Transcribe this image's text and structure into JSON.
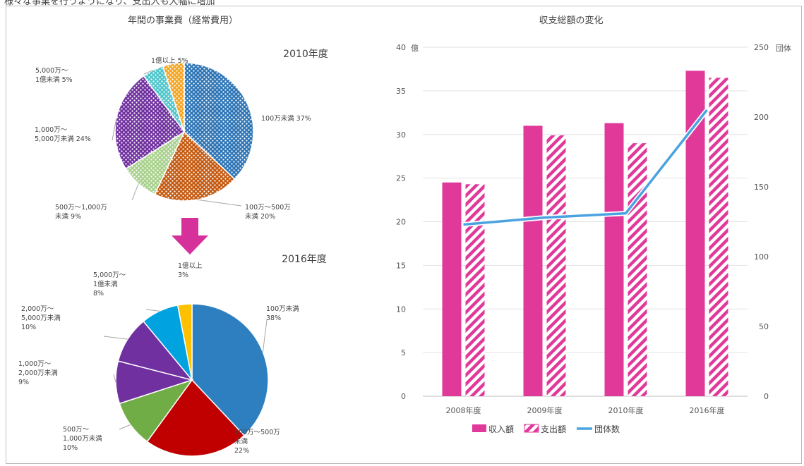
{
  "page_caption": "様々な事業を行うようになり、支出入も大幅に増加",
  "colors": {
    "pink": "#e0399a",
    "line": "#4aa3df",
    "dots_blue": "#2e75b6",
    "dots_orange": "#c55a11",
    "dots_green": "#a9d18e",
    "dots_purple": "#7030a0",
    "dots_cyan": "#4fc6cc",
    "dots_yellow": "#f4a522",
    "solid_blue": "#2e7fbf",
    "solid_red": "#c00000",
    "solid_green": "#70ad47",
    "solid_purple": "#7030a0",
    "solid_cyan": "#00a3e0",
    "solid_yellow": "#ffc000",
    "arrow": "#d6309a"
  },
  "chart_data": [
    {
      "type": "pie",
      "title": "年間の事業費（経常費用）",
      "year_label": "2010年度",
      "slices": [
        {
          "name": "100万未満",
          "value": 37,
          "label_lines": [
            "100万未満 37%"
          ]
        },
        {
          "name": "100万～500万未満",
          "value": 20,
          "label_lines": [
            "100万～500万",
            "未満 20%"
          ]
        },
        {
          "name": "500万～1,000万未満",
          "value": 9,
          "label_lines": [
            "500万～1,000万",
            "未満 9%"
          ]
        },
        {
          "name": "1,000万～5,000万未満",
          "value": 24,
          "label_lines": [
            "1,000万～",
            "5,000万未満 24%"
          ]
        },
        {
          "name": "5,000万～1億未満",
          "value": 5,
          "label_lines": [
            "5,000万～",
            "1億未満 5%"
          ]
        },
        {
          "name": "1億以上",
          "value": 5,
          "label_lines": [
            "1億以上 5%"
          ]
        }
      ]
    },
    {
      "type": "pie",
      "title": "",
      "year_label": "2016年度",
      "slices": [
        {
          "name": "100万未満",
          "value": 38,
          "label_lines": [
            "100万未満",
            "38%"
          ]
        },
        {
          "name": "100万～500万未満",
          "value": 22,
          "label_lines": [
            "100万～500万",
            "未満",
            "22%"
          ]
        },
        {
          "name": "500万～1,000万未満",
          "value": 10,
          "label_lines": [
            "500万～",
            "1,000万未満",
            "10%"
          ]
        },
        {
          "name": "1,000万～2,000万未満",
          "value": 9,
          "label_lines": [
            "1,000万～",
            "2,000万未満",
            "9%"
          ]
        },
        {
          "name": "2,000万～5,000万未満",
          "value": 10,
          "label_lines": [
            "2,000万～",
            "5,000万未満",
            "10%"
          ]
        },
        {
          "name": "5,000万～1億未満",
          "value": 8,
          "label_lines": [
            "5,000万～",
            "1億未満",
            "8%"
          ]
        },
        {
          "name": "1億以上",
          "value": 3,
          "label_lines": [
            "1億以上",
            "3%"
          ]
        }
      ]
    },
    {
      "type": "bar",
      "title": "収支総額の変化",
      "categories": [
        "2008年度",
        "2009年度",
        "2010年度",
        "2016年度"
      ],
      "series": [
        {
          "name": "収入額",
          "kind": "bar",
          "values": [
            24.5,
            31.0,
            31.3,
            37.3
          ]
        },
        {
          "name": "支出額",
          "kind": "bar-hatched",
          "values": [
            24.3,
            29.9,
            29.0,
            36.5
          ]
        },
        {
          "name": "団体数",
          "kind": "line",
          "axis": "right",
          "values": [
            123,
            128,
            131,
            205
          ]
        }
      ],
      "y_left": {
        "unit": "億",
        "min": 0,
        "max": 40,
        "ticks": [
          "0",
          "5",
          "10",
          "15",
          "20",
          "25",
          "30",
          "35",
          "40"
        ]
      },
      "y_right": {
        "unit": "団体",
        "min": 0,
        "max": 250,
        "ticks": [
          "0",
          "50",
          "100",
          "150",
          "200",
          "250"
        ]
      },
      "grid": true,
      "legend_position": "bottom"
    }
  ]
}
